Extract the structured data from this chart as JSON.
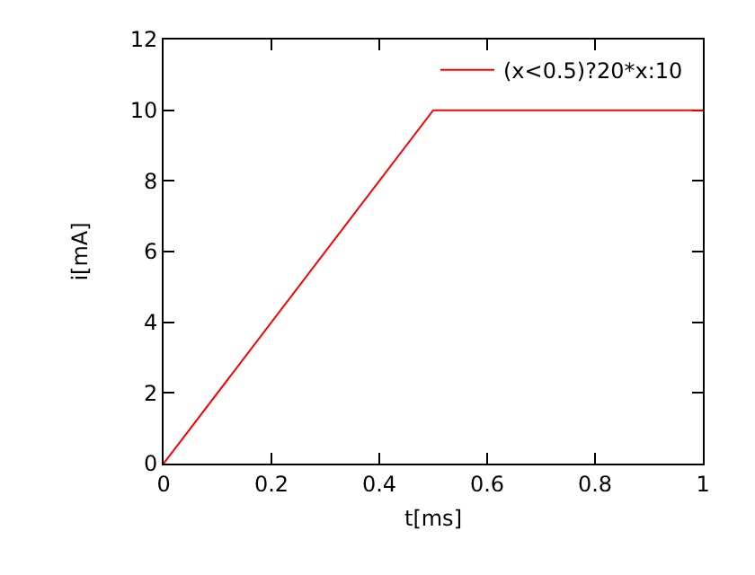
{
  "chart_data": {
    "type": "line",
    "xlabel": "t[ms]",
    "ylabel": "i[mA]",
    "x": [
      0,
      0.5,
      1
    ],
    "series": [
      {
        "name": "(x<0.5)?20*x:10",
        "color": "#ff0000",
        "values": [
          0,
          10,
          10
        ]
      }
    ],
    "xlim": [
      0,
      1
    ],
    "xticks": [
      0,
      0.2,
      0.4,
      0.6,
      0.8,
      1
    ],
    "ylim": [
      0,
      12
    ],
    "yticks": [
      0,
      2,
      4,
      6,
      8,
      10,
      12
    ],
    "grid": false,
    "legend": "top right",
    "marker": "none",
    "line_style": "solid"
  }
}
